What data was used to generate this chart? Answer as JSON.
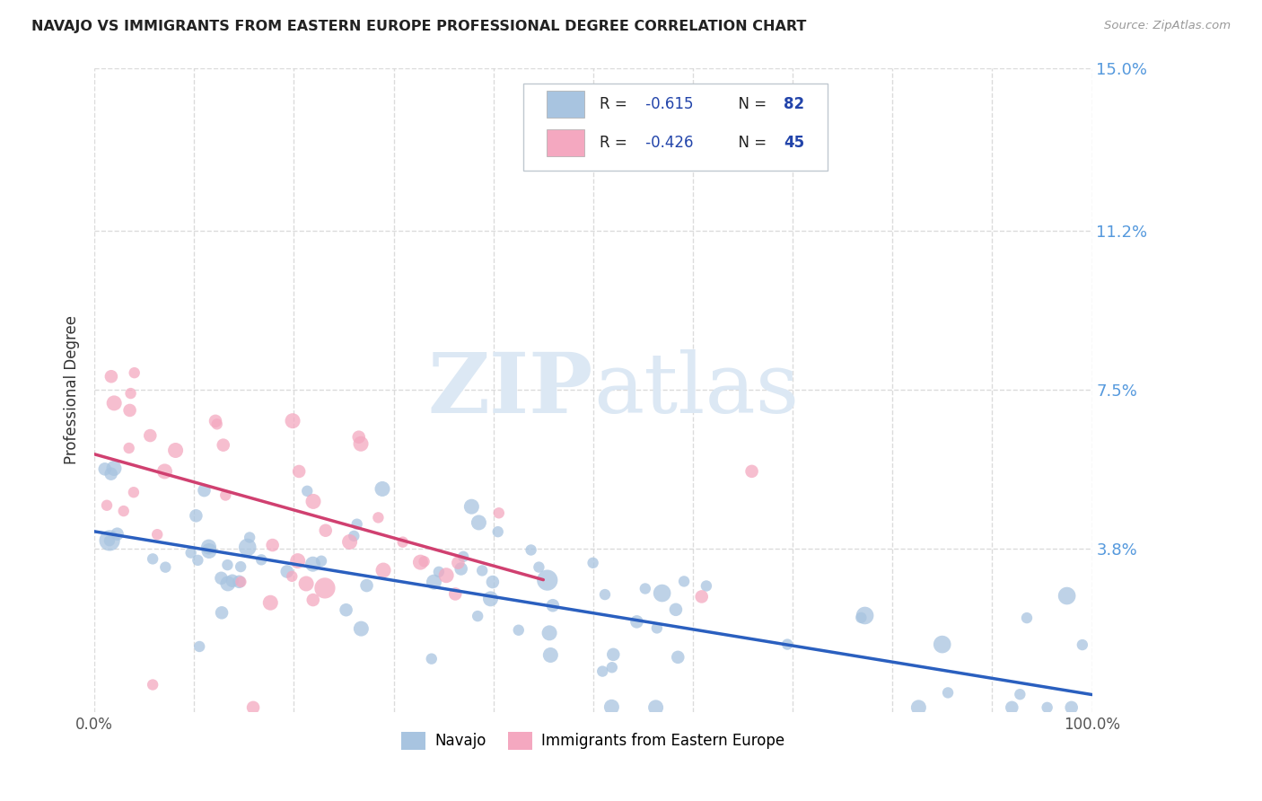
{
  "title": "NAVAJO VS IMMIGRANTS FROM EASTERN EUROPE PROFESSIONAL DEGREE CORRELATION CHART",
  "source": "Source: ZipAtlas.com",
  "ylabel": "Professional Degree",
  "navajo_R": -0.615,
  "navajo_N": 82,
  "eastern_R": -0.426,
  "eastern_N": 45,
  "xlim": [
    0,
    1.0
  ],
  "ylim": [
    0,
    0.15
  ],
  "yticks": [
    0.038,
    0.075,
    0.112,
    0.15
  ],
  "ytick_labels": [
    "3.8%",
    "7.5%",
    "11.2%",
    "15.0%"
  ],
  "bg_color": "#ffffff",
  "grid_color": "#d8d8d8",
  "navajo_color": "#a8c4e0",
  "navajo_line_color": "#2a5fbf",
  "eastern_color": "#f4a8c0",
  "eastern_line_color": "#d04070",
  "watermark_text": "ZIPatlas",
  "watermark_color": "#dce8f4",
  "right_label_color": "#5599dd",
  "legend_text_color": "#2244aa",
  "legend_num_color": "#1144bb"
}
